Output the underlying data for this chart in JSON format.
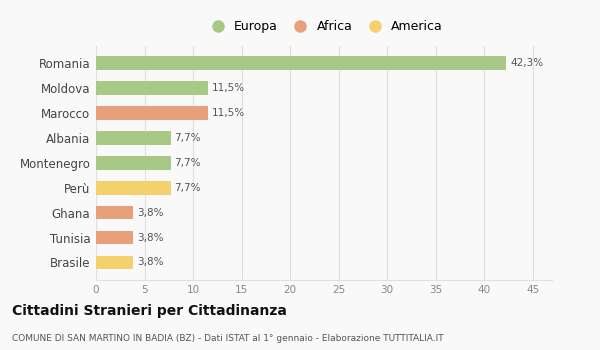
{
  "categories": [
    "Romania",
    "Moldova",
    "Marocco",
    "Albania",
    "Montenegro",
    "Perù",
    "Ghana",
    "Tunisia",
    "Brasile"
  ],
  "values": [
    42.3,
    11.5,
    11.5,
    7.7,
    7.7,
    7.7,
    3.8,
    3.8,
    3.8
  ],
  "labels": [
    "42,3%",
    "11,5%",
    "11,5%",
    "7,7%",
    "7,7%",
    "7,7%",
    "3,8%",
    "3,8%",
    "3,8%"
  ],
  "continents": [
    "Europa",
    "Europa",
    "Africa",
    "Europa",
    "Europa",
    "America",
    "Africa",
    "Africa",
    "America"
  ],
  "colors": {
    "Europa": "#a8c887",
    "Africa": "#e8a07a",
    "America": "#f5d06e"
  },
  "legend_items": [
    "Europa",
    "Africa",
    "America"
  ],
  "xlim": [
    0,
    47
  ],
  "xticks": [
    0,
    5,
    10,
    15,
    20,
    25,
    30,
    35,
    40,
    45
  ],
  "title": "Cittadini Stranieri per Cittadinanza",
  "subtitle": "COMUNE DI SAN MARTINO IN BADIA (BZ) - Dati ISTAT al 1° gennaio - Elaborazione TUTTITALIA.IT",
  "bg_color": "#f9f9f9",
  "grid_color": "#e0e0e0",
  "bar_height": 0.55
}
